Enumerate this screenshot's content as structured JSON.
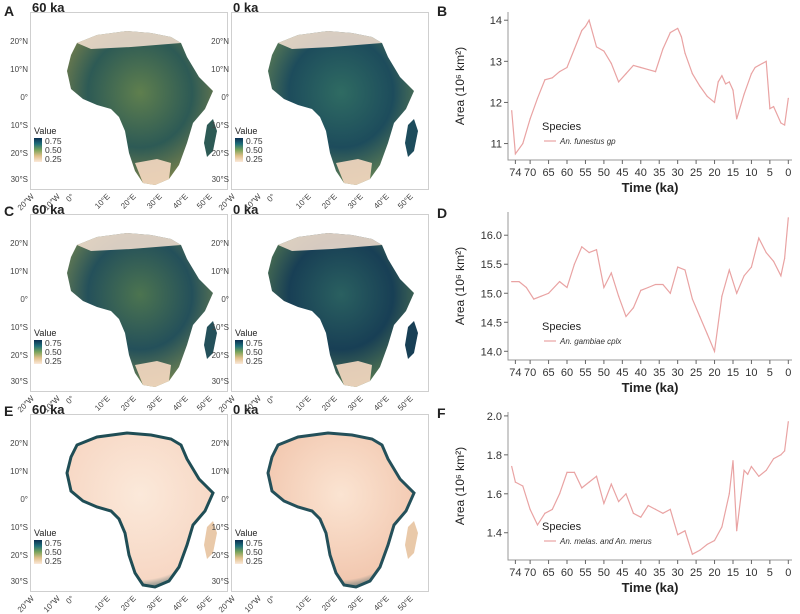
{
  "colors": {
    "ramp_high": "#0b2f52",
    "ramp_mid": "#7aa35a",
    "ramp_low": "#fbe9da",
    "line": "#e9a3a3"
  },
  "legend": {
    "title": "Value",
    "ticks": [
      "0.75",
      "0.50",
      "0.25"
    ]
  },
  "map_axes": {
    "lat": [
      "20°N",
      "10°N",
      "0°",
      "10°S",
      "20°S",
      "30°S"
    ],
    "lon": [
      "20°W",
      "10°W",
      "0°",
      "10°E",
      "20°E",
      "30°E",
      "40°E",
      "50°E"
    ]
  },
  "map_rows": [
    {
      "letter": "A",
      "left_title": "60 ka",
      "right_title": "0 ka",
      "pattern": "funestus"
    },
    {
      "letter": "C",
      "left_title": "60 ka",
      "right_title": "0 ka",
      "pattern": "gambiae"
    },
    {
      "letter": "E",
      "left_title": "60 ka",
      "right_title": "0 ka",
      "pattern": "coastal"
    }
  ],
  "chart_data": [
    {
      "panel": "B",
      "type": "line",
      "xlabel": "Time (ka)",
      "ylabel": "Area (10⁶ km²)",
      "xticks": [
        74,
        70,
        65,
        60,
        55,
        50,
        45,
        40,
        35,
        30,
        25,
        20,
        15,
        10,
        5,
        0
      ],
      "yticks": [
        11,
        12,
        13,
        14
      ],
      "ylim": [
        10.6,
        14.2
      ],
      "xlim": [
        76,
        -1
      ],
      "legend_title": "Species",
      "series": [
        {
          "name": "An. funestus gp",
          "x": [
            75,
            74,
            72,
            70,
            68,
            66,
            64,
            62,
            60,
            58,
            56,
            55,
            54,
            52,
            50,
            48,
            46,
            44,
            42,
            40,
            38,
            36,
            34,
            32,
            30,
            29,
            28,
            26,
            24,
            22,
            20,
            19,
            18,
            17,
            16,
            15,
            14,
            12,
            10,
            9,
            8,
            6,
            5,
            4,
            2,
            1,
            0
          ],
          "values": [
            11.8,
            10.75,
            11.0,
            11.6,
            12.1,
            12.55,
            12.6,
            12.75,
            12.85,
            13.3,
            13.75,
            13.85,
            14.0,
            13.35,
            13.25,
            12.95,
            12.5,
            12.7,
            12.9,
            12.85,
            12.8,
            12.75,
            13.3,
            13.7,
            13.8,
            13.6,
            13.2,
            12.7,
            12.4,
            12.15,
            12.0,
            12.5,
            12.65,
            12.45,
            12.5,
            12.3,
            11.6,
            12.2,
            12.7,
            12.85,
            12.9,
            13.0,
            11.85,
            11.9,
            11.5,
            11.45,
            12.1
          ]
        }
      ]
    },
    {
      "panel": "D",
      "type": "line",
      "xlabel": "Time (ka)",
      "ylabel": "Area (10⁶ km²)",
      "xticks": [
        74,
        70,
        65,
        60,
        55,
        50,
        45,
        40,
        35,
        30,
        25,
        20,
        15,
        10,
        5,
        0
      ],
      "yticks": [
        14.0,
        14.5,
        15.0,
        15.5,
        16.0
      ],
      "ylim": [
        13.85,
        16.4
      ],
      "xlim": [
        76,
        -1
      ],
      "legend_title": "Species",
      "series": [
        {
          "name": "An. gambiae cplx",
          "x": [
            75,
            73,
            71,
            69,
            67,
            65,
            62,
            60,
            58,
            56,
            54,
            52,
            50,
            48,
            46,
            44,
            42,
            40,
            38,
            36,
            34,
            32,
            30,
            28,
            26,
            24,
            22,
            20,
            18,
            16,
            14,
            12,
            10,
            8,
            6,
            4,
            2,
            1,
            0
          ],
          "values": [
            15.2,
            15.2,
            15.1,
            14.9,
            14.95,
            15.0,
            15.2,
            15.1,
            15.5,
            15.8,
            15.7,
            15.75,
            15.1,
            15.35,
            14.95,
            14.6,
            14.75,
            15.05,
            15.1,
            15.15,
            15.15,
            15.0,
            15.45,
            15.4,
            14.9,
            14.6,
            14.3,
            14.0,
            14.95,
            15.4,
            15.0,
            15.3,
            15.45,
            15.95,
            15.7,
            15.55,
            15.3,
            15.6,
            16.3
          ]
        }
      ]
    },
    {
      "panel": "F",
      "type": "line",
      "xlabel": "Time (ka)",
      "ylabel": "Area (10⁶ km²)",
      "xticks": [
        74,
        70,
        65,
        60,
        55,
        50,
        45,
        40,
        35,
        30,
        25,
        20,
        15,
        10,
        5,
        0
      ],
      "yticks": [
        1.4,
        1.6,
        1.8,
        2.0
      ],
      "ylim": [
        1.26,
        2.02
      ],
      "xlim": [
        76,
        -1
      ],
      "legend_title": "Species",
      "series": [
        {
          "name": "An. melas. and An. merus",
          "x": [
            75,
            74,
            72,
            70,
            68,
            66,
            64,
            62,
            60,
            58,
            56,
            54,
            52,
            50,
            48,
            46,
            44,
            42,
            40,
            38,
            36,
            34,
            32,
            30,
            28,
            26,
            24,
            22,
            20,
            18,
            16,
            15,
            14,
            12,
            11,
            10,
            8,
            6,
            4,
            2,
            1,
            0
          ],
          "values": [
            1.74,
            1.66,
            1.64,
            1.52,
            1.44,
            1.5,
            1.52,
            1.6,
            1.71,
            1.71,
            1.63,
            1.66,
            1.69,
            1.55,
            1.65,
            1.56,
            1.6,
            1.5,
            1.48,
            1.54,
            1.52,
            1.5,
            1.52,
            1.39,
            1.41,
            1.29,
            1.31,
            1.34,
            1.36,
            1.43,
            1.6,
            1.77,
            1.41,
            1.72,
            1.7,
            1.74,
            1.69,
            1.72,
            1.78,
            1.8,
            1.82,
            1.97
          ]
        }
      ]
    }
  ]
}
